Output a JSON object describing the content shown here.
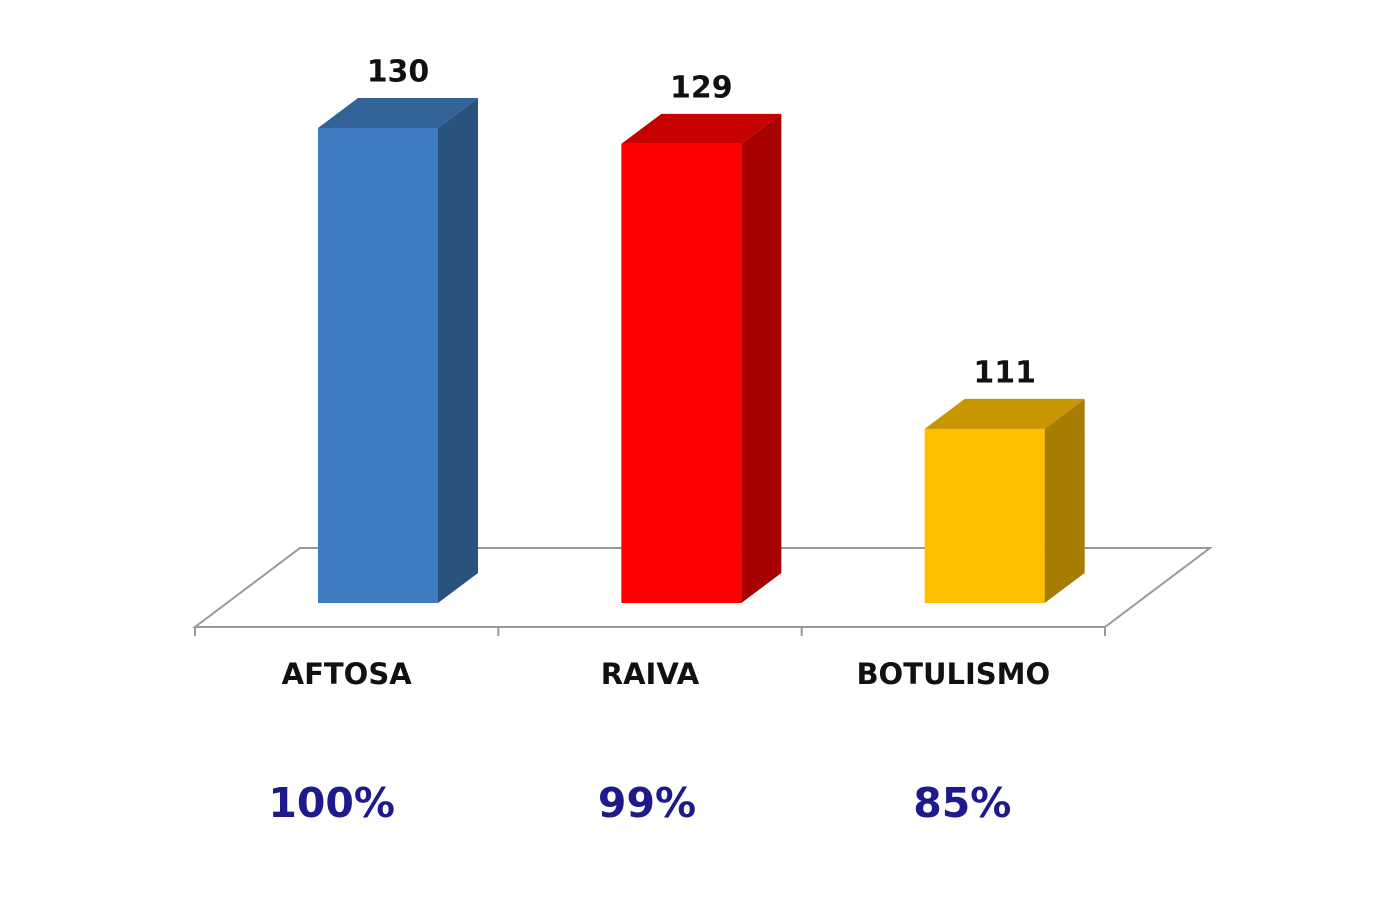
{
  "chart_data": {
    "type": "bar3d",
    "categories": [
      "AFTOSA",
      "RAIVA",
      "BOTULISMO"
    ],
    "values": [
      130,
      129,
      111
    ],
    "colors": [
      "#3f7fc1",
      "#ff0000",
      "#ffc000"
    ],
    "percent_labels": [
      "100%",
      "99%",
      "85%"
    ],
    "ylim": [
      100,
      130
    ]
  }
}
